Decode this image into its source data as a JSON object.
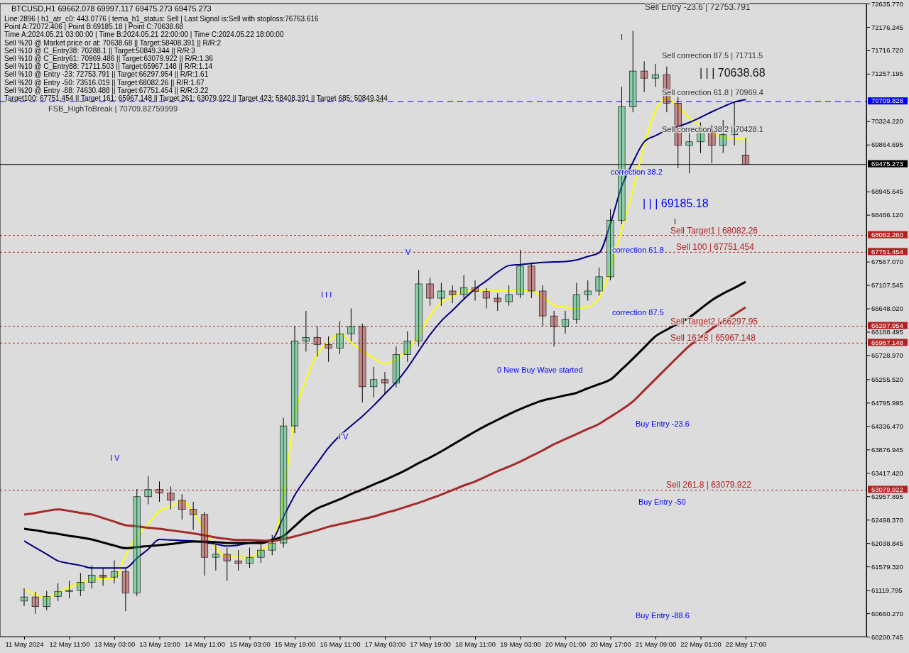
{
  "chart_data": {
    "type": "candlestick",
    "title": "BTCUSD,H1  69662.078 69997.117 69475.273 69475.273",
    "annotations": [
      "Line:2896 | h1_atr_c0: 443.0776 | tema_h1_status: Sell | Last Signal is:Sell with stoploss:76763.616",
      "Point A:72072.406 | Point B:69185.18 | Point C:70638.68",
      "Time A:2024.05.21 03:00:00 | Time B:2024.05.21 22:00:00 | Time C:2024.05.22 18:00:00",
      "Sell %20 @ Market price or at: 70638.68 || Target:58408.391 || R/R:2",
      "Sell %10 @ C_Entry38: 70288.1 || Target:50849.344 || R/R:3",
      "Sell %10 @ C_Entry61: 70969.486 || Target:63079.922 || R/R:1.36",
      "Sell %10 @ C_Entry88: 71711.503 || Target:65967.148 || R/R:1.14",
      "Sell %10 @ Entry -23: 72753.791 || Target:66297.954 || R/R:1.61",
      "Sell %20 @ Entry -50: 73516.019 || Target:68082.26 || R/R:1.67",
      "Sell %20 @ Entry -88: 74630.488 || Target:67751.454 || R/R:3.22",
      "Target100: 67751.454 || Target 161: 65967.148 || Target 261: 63079.922 || Target 423: 58408.391 || Target 685: 50849.344",
      {
        "text": "FSB_HighToBreak | 70709.82759999",
        "y": 70709.828
      },
      "Sell Entry -23.6 | 72753.791",
      "Sell correction 87.5 | 71711.5",
      "Sell correction 61.8 | 70969.4",
      "Sell correction 38.2 | 70428.1",
      "| | | 70638.68",
      "| | | 69185.18",
      "correction 38.2",
      "correction 61.8",
      "correction 87.5",
      {
        "text": "Sell Target1 | 68082.26",
        "y": 68082.26
      },
      {
        "text": "Sell 100 | 67751.454",
        "y": 67751.454
      },
      {
        "text": "Sell Target2 | 66297.95",
        "y": 66297.954
      },
      {
        "text": "Sell 161.8 | 65967.148",
        "y": 65967.148
      },
      {
        "text": "Sell 261.8 | 63079.922",
        "y": 63079.922
      },
      "Buy Entry -23.6",
      "Buy Entry -50",
      "Buy Entry -88.6",
      "0 New Buy Wave started",
      "I V",
      "I I I",
      "V",
      "I V",
      "I",
      "I"
    ],
    "categories": [
      "11 May 2024",
      null,
      null,
      null,
      "12 May 11:00",
      null,
      null,
      null,
      "13 May 03:00",
      null,
      null,
      null,
      "13 May 19:00",
      null,
      null,
      null,
      "14 May 11:00",
      null,
      null,
      null,
      "15 May 03:00",
      null,
      null,
      null,
      "15 May 19:00",
      null,
      null,
      null,
      "16 May 11:00",
      null,
      null,
      null,
      "17 May 03:00",
      null,
      null,
      null,
      "17 May 19:00",
      null,
      null,
      null,
      "18 May 11:00",
      null,
      null,
      null,
      "19 May 03:00",
      null,
      null,
      null,
      "20 May 01:00",
      null,
      null,
      null,
      "20 May 17:00",
      null,
      null,
      null,
      "21 May 09:00",
      null,
      null,
      null,
      "22 May 01:00",
      null,
      null,
      null,
      "22 May 17:00"
    ],
    "ylim": [
      60200.745,
      72635.77
    ],
    "yticks": [
      {
        "value": 60200.745,
        "label": "60200.745"
      },
      {
        "value": 60660.27,
        "label": "60660.270"
      },
      {
        "value": 61119.795,
        "label": "61119.795"
      },
      {
        "value": 61579.32,
        "label": "61579.320"
      },
      {
        "value": 62038.845,
        "label": "62038.845"
      },
      {
        "value": 62498.37,
        "label": "62498.370"
      },
      {
        "value": 62957.895,
        "label": "62957.895"
      },
      {
        "value": 63417.42,
        "label": "63417.420"
      },
      {
        "value": 63876.945,
        "label": "63876.945"
      },
      {
        "value": 64336.47,
        "label": "64336.470"
      },
      {
        "value": 64795.995,
        "label": "64795.995"
      },
      {
        "value": 65255.52,
        "label": "65255.520"
      },
      {
        "value": 65728.97,
        "label": "65728.970"
      },
      {
        "value": 66188.495,
        "label": "66188.495"
      },
      {
        "value": 66648.02,
        "label": "66648.020"
      },
      {
        "value": 67107.545,
        "label": "67107.545"
      },
      {
        "value": 67567.07,
        "label": "67567.070"
      },
      {
        "value": 68486.12,
        "label": "68486.120"
      },
      {
        "value": 68945.645,
        "label": "68945.645"
      },
      {
        "value": 69864.695,
        "label": "69864.695"
      },
      {
        "value": 70324.22,
        "label": "70324.220"
      },
      {
        "value": 71257.195,
        "label": "71257.195"
      },
      {
        "value": 71716.72,
        "label": "71716.720"
      },
      {
        "value": 72176.245,
        "label": "72176.245"
      },
      {
        "value": 72635.77,
        "label": "72635.770"
      }
    ],
    "ref_lines": [
      {
        "axis": "y",
        "value": 70709.828,
        "label": "70709.828",
        "color": "#0000ff",
        "line_style": "dashed"
      },
      {
        "axis": "y",
        "value": 69475.273,
        "label": "69475.273",
        "color": "#000000",
        "line_style": "solid"
      },
      {
        "axis": "y",
        "value": 68082.26,
        "label": "68082.260",
        "color": "#b22222",
        "line_style": "dotted"
      },
      {
        "axis": "y",
        "value": 67751.454,
        "label": "67751.454",
        "color": "#b22222",
        "line_style": "dotted"
      },
      {
        "axis": "y",
        "value": 66297.954,
        "label": "66297.954",
        "color": "#b22222",
        "line_style": "dotted"
      },
      {
        "axis": "y",
        "value": 65967.148,
        "label": "65967.148",
        "color": "#b22222",
        "line_style": "dotted"
      },
      {
        "axis": "y",
        "value": 63079.922,
        "label": "63079.922",
        "color": "#b22222",
        "line_style": "dotted"
      }
    ],
    "series": [
      {
        "ohlc": [
          [
            60900,
            61150,
            60800,
            60980
          ],
          [
            60980,
            61080,
            60650,
            60790
          ],
          [
            60790,
            61100,
            60720,
            60990
          ],
          [
            60990,
            61250,
            60900,
            61090
          ],
          [
            61090,
            61300,
            60950,
            61110
          ],
          [
            61110,
            61450,
            61000,
            61270
          ],
          [
            61270,
            61600,
            61150,
            61410
          ],
          [
            61410,
            61550,
            61200,
            61370
          ],
          [
            61370,
            61700,
            61250,
            61480
          ],
          [
            61480,
            61550,
            60700,
            61060
          ],
          [
            61060,
            63100,
            61000,
            62950
          ],
          [
            62950,
            63350,
            62800,
            63090
          ],
          [
            63090,
            63250,
            62850,
            63020
          ],
          [
            63020,
            63150,
            62700,
            62880
          ],
          [
            62880,
            63000,
            62500,
            62700
          ],
          [
            62700,
            62850,
            62300,
            62600
          ],
          [
            62600,
            62650,
            61400,
            61760
          ],
          [
            61760,
            62000,
            61500,
            61820
          ],
          [
            61820,
            61950,
            61300,
            61690
          ],
          [
            61690,
            61900,
            61500,
            61640
          ],
          [
            61640,
            61950,
            61550,
            61760
          ],
          [
            61760,
            62050,
            61650,
            61900
          ],
          [
            61900,
            62200,
            61800,
            62040
          ],
          [
            62040,
            64500,
            61950,
            64340
          ],
          [
            64340,
            66300,
            64200,
            66010
          ],
          [
            66010,
            66600,
            65800,
            66080
          ],
          [
            66080,
            66300,
            65700,
            65940
          ],
          [
            65940,
            66100,
            65600,
            65870
          ],
          [
            65870,
            66400,
            65750,
            66150
          ],
          [
            66150,
            66650,
            66000,
            66290
          ],
          [
            66290,
            66350,
            64800,
            65110
          ],
          [
            65110,
            65500,
            64900,
            65250
          ],
          [
            65250,
            65400,
            64950,
            65180
          ],
          [
            65180,
            65900,
            65100,
            65740
          ],
          [
            65740,
            66200,
            65600,
            66010
          ],
          [
            66010,
            67400,
            65900,
            67130
          ],
          [
            67130,
            67250,
            66700,
            66850
          ],
          [
            66850,
            67150,
            66700,
            66990
          ],
          [
            66990,
            67100,
            66750,
            66920
          ],
          [
            66920,
            67300,
            66850,
            67050
          ],
          [
            67050,
            67200,
            66800,
            66980
          ],
          [
            66980,
            67050,
            66650,
            66850
          ],
          [
            66850,
            66950,
            66600,
            66780
          ],
          [
            66780,
            67100,
            66700,
            66920
          ],
          [
            66920,
            67800,
            66850,
            67480
          ],
          [
            67480,
            67550,
            66850,
            66990
          ],
          [
            66990,
            67100,
            66300,
            66500
          ],
          [
            66500,
            66600,
            65900,
            66290
          ],
          [
            66290,
            66600,
            66150,
            66430
          ],
          [
            66430,
            67150,
            66350,
            66920
          ],
          [
            66920,
            67200,
            66800,
            66990
          ],
          [
            66990,
            67450,
            66900,
            67270
          ],
          [
            67270,
            68600,
            67200,
            68380
          ],
          [
            68380,
            71000,
            68300,
            70610
          ],
          [
            70610,
            72100,
            70500,
            71310
          ],
          [
            71310,
            71500,
            70900,
            71170
          ],
          [
            71170,
            71450,
            71000,
            71240
          ],
          [
            71240,
            71400,
            70500,
            70680
          ],
          [
            70680,
            70800,
            69400,
            69850
          ],
          [
            69850,
            70200,
            69300,
            69920
          ],
          [
            69920,
            70300,
            69700,
            70130
          ],
          [
            70130,
            70250,
            69500,
            69850
          ],
          [
            69850,
            70350,
            69700,
            70060
          ],
          [
            70060,
            70700,
            69850,
            70130
          ],
          [
            69662.078,
            69997.117,
            69475.273,
            69475.273
          ]
        ]
      },
      {
        "type": "line",
        "color": "#ffff00",
        "values": [
          61130,
          61030,
          60960,
          61070,
          61170,
          61250,
          61340,
          61340,
          61340,
          61800,
          62170,
          62420,
          62670,
          62760,
          62860,
          62640,
          62300,
          61940,
          61760,
          61760,
          61760,
          61900,
          62040,
          62950,
          64530,
          65240,
          65750,
          65990,
          66150,
          65980,
          65810,
          65670,
          65560,
          65660,
          65830,
          66120,
          66500,
          66770,
          66880,
          66990,
          66990,
          66990,
          66990,
          66990,
          66990,
          66990,
          66870,
          66710,
          66670,
          66650,
          66680,
          66850,
          67410,
          68190,
          68970,
          69850,
          70530,
          70780,
          70610,
          70390,
          70230,
          70090,
          70010,
          69990,
          69990
        ]
      },
      {
        "type": "line",
        "color": "#000080",
        "values": [
          62080,
          61950,
          61820,
          61690,
          61640,
          61600,
          61550,
          61550,
          61550,
          61550,
          61740,
          61920,
          62110,
          62100,
          62090,
          62080,
          62050,
          62020,
          61980,
          62000,
          62040,
          62070,
          62110,
          62550,
          62980,
          63310,
          63610,
          63910,
          64150,
          64340,
          64530,
          64740,
          64970,
          65200,
          65480,
          65810,
          66130,
          66400,
          66610,
          66830,
          67030,
          67190,
          67360,
          67490,
          67510,
          67530,
          67550,
          67560,
          67570,
          67600,
          67670,
          67740,
          68310,
          69040,
          69520,
          69920,
          70040,
          70150,
          70220,
          70300,
          70400,
          70510,
          70610,
          70700,
          70750
        ]
      },
      {
        "type": "line",
        "color": "#000000",
        "values": [
          62320,
          62290,
          62250,
          62220,
          62180,
          62150,
          62110,
          62050,
          61990,
          61940,
          61960,
          61980,
          62000,
          62020,
          62050,
          62070,
          62070,
          62060,
          62040,
          62040,
          62040,
          62040,
          62100,
          62180,
          62370,
          62570,
          62720,
          62810,
          62900,
          63000,
          63090,
          63190,
          63280,
          63380,
          63490,
          63610,
          63720,
          63840,
          63970,
          64100,
          64230,
          64350,
          64460,
          64570,
          64670,
          64760,
          64840,
          64890,
          64940,
          64990,
          65080,
          65160,
          65250,
          65450,
          65660,
          65880,
          66100,
          66230,
          66350,
          66470,
          66640,
          66810,
          66940,
          67050,
          67170
        ]
      },
      {
        "type": "line",
        "color": "#a52a2a",
        "values": [
          62600,
          62630,
          62670,
          62700,
          62670,
          62630,
          62600,
          62530,
          62460,
          62390,
          62370,
          62340,
          62320,
          62290,
          62260,
          62230,
          62190,
          62150,
          62120,
          62100,
          62100,
          62090,
          62080,
          62120,
          62170,
          62230,
          62290,
          62360,
          62410,
          62460,
          62510,
          62560,
          62630,
          62690,
          62760,
          62830,
          62910,
          62990,
          63080,
          63170,
          63250,
          63350,
          63450,
          63540,
          63640,
          63750,
          63860,
          63980,
          64080,
          64180,
          64280,
          64380,
          64520,
          64660,
          64820,
          65040,
          65260,
          65480,
          65700,
          65910,
          66080,
          66250,
          66390,
          66530,
          66670
        ]
      }
    ]
  }
}
